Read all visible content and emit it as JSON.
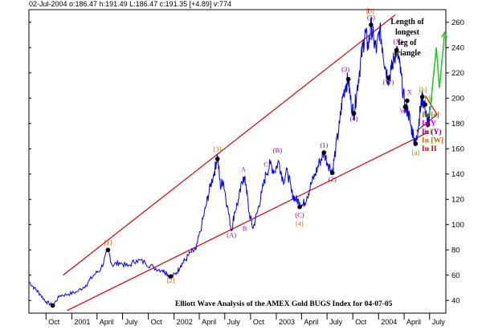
{
  "header": {
    "text": "02-Jul-2004  o:186.47 h:191.49 L:186.47 c:191.35 [+4.89] v:774"
  },
  "footer_title": "Elliott Wave Analysis of the AMEX Gold BUGS Index for 04-07-05",
  "annotation": "Length of longest leg of triangle",
  "colors": {
    "price": "#0000ee",
    "trend": "#dd0000",
    "projection": "#22cc22",
    "pivot": "#000000",
    "orange": "#e06000",
    "magenta": "#cc00cc",
    "purple": "#880088",
    "red": "#cc0000",
    "olive": "#888800",
    "dark": "#000080"
  },
  "right_legend": [
    {
      "text": "In [e]",
      "color": "#888800"
    },
    {
      "text": "In Y",
      "color": "#cc00cc"
    },
    {
      "text": "In (Y)",
      "color": "#880088"
    },
    {
      "text": "In [W]",
      "color": "#e06000"
    },
    {
      "text": "In II",
      "color": "#cc0000"
    }
  ],
  "chart_data": {
    "type": "line",
    "x_axis": {
      "range": [
        "2000-08-01",
        "2004-08-28"
      ],
      "tick_labels": [
        {
          "label": "Oct",
          "date": "2000-10-01"
        },
        {
          "label": "2001",
          "date": "2001-01-01"
        },
        {
          "label": "April",
          "date": "2001-04-01"
        },
        {
          "label": "July",
          "date": "2001-07-01"
        },
        {
          "label": "Oct",
          "date": "2001-10-01"
        },
        {
          "label": "2002",
          "date": "2002-01-01"
        },
        {
          "label": "April",
          "date": "2002-04-01"
        },
        {
          "label": "July",
          "date": "2002-07-01"
        },
        {
          "label": "Oct",
          "date": "2002-10-01"
        },
        {
          "label": "2003",
          "date": "2003-01-01"
        },
        {
          "label": "April",
          "date": "2003-04-01"
        },
        {
          "label": "July",
          "date": "2003-07-01"
        },
        {
          "label": "Oct",
          "date": "2003-10-01"
        },
        {
          "label": "2004",
          "date": "2004-01-01"
        },
        {
          "label": "April",
          "date": "2004-04-01"
        },
        {
          "label": "July",
          "date": "2004-07-01"
        }
      ]
    },
    "y_axis": {
      "range": [
        30,
        270
      ],
      "ticks": [
        40,
        60,
        80,
        100,
        120,
        140,
        160,
        180,
        200,
        220,
        240,
        260
      ]
    },
    "grid": false,
    "series": [
      {
        "points": [
          [
            "2000-08-01",
            55
          ],
          [
            "2000-08-20",
            50
          ],
          [
            "2000-09-10",
            45
          ],
          [
            "2000-10-01",
            39
          ],
          [
            "2000-10-25",
            36
          ],
          [
            "2000-11-20",
            44
          ],
          [
            "2000-12-20",
            45
          ],
          [
            "2001-01-20",
            47
          ],
          [
            "2001-02-20",
            52
          ],
          [
            "2001-03-20",
            60
          ],
          [
            "2001-04-15",
            65
          ],
          [
            "2001-05-10",
            80
          ],
          [
            "2001-05-25",
            68
          ],
          [
            "2001-06-20",
            70
          ],
          [
            "2001-07-20",
            67
          ],
          [
            "2001-08-20",
            72
          ],
          [
            "2001-09-20",
            70
          ],
          [
            "2001-10-20",
            66
          ],
          [
            "2001-11-20",
            64
          ],
          [
            "2001-12-05",
            62
          ],
          [
            "2001-12-20",
            58
          ],
          [
            "2002-01-10",
            62
          ],
          [
            "2002-01-25",
            68
          ],
          [
            "2002-02-10",
            72
          ],
          [
            "2002-03-01",
            78
          ],
          [
            "2002-03-20",
            80
          ],
          [
            "2002-04-10",
            100
          ],
          [
            "2002-04-25",
            115
          ],
          [
            "2002-05-10",
            130
          ],
          [
            "2002-05-25",
            142
          ],
          [
            "2002-06-05",
            155
          ],
          [
            "2002-06-15",
            130
          ],
          [
            "2002-06-25",
            135
          ],
          [
            "2002-07-10",
            115
          ],
          [
            "2002-07-25",
            95
          ],
          [
            "2002-08-05",
            110
          ],
          [
            "2002-08-20",
            120
          ],
          [
            "2002-09-05",
            138
          ],
          [
            "2002-09-15",
            132
          ],
          [
            "2002-09-25",
            110
          ],
          [
            "2002-10-10",
            97
          ],
          [
            "2002-10-25",
            110
          ],
          [
            "2002-11-10",
            125
          ],
          [
            "2002-11-25",
            140
          ],
          [
            "2002-12-10",
            148
          ],
          [
            "2002-12-25",
            142
          ],
          [
            "2003-01-10",
            150
          ],
          [
            "2003-01-25",
            135
          ],
          [
            "2003-02-10",
            142
          ],
          [
            "2003-02-25",
            125
          ],
          [
            "2003-03-10",
            120
          ],
          [
            "2003-03-25",
            118
          ],
          [
            "2003-04-05",
            115
          ],
          [
            "2003-04-20",
            122
          ],
          [
            "2003-05-05",
            132
          ],
          [
            "2003-05-20",
            140
          ],
          [
            "2003-06-05",
            150
          ],
          [
            "2003-06-20",
            157
          ],
          [
            "2003-07-05",
            148
          ],
          [
            "2003-07-20",
            142
          ],
          [
            "2003-08-01",
            160
          ],
          [
            "2003-08-15",
            180
          ],
          [
            "2003-08-25",
            200
          ],
          [
            "2003-09-05",
            210
          ],
          [
            "2003-09-15",
            215
          ],
          [
            "2003-09-25",
            195
          ],
          [
            "2003-10-05",
            188
          ],
          [
            "2003-10-15",
            205
          ],
          [
            "2003-10-25",
            222
          ],
          [
            "2003-11-05",
            240
          ],
          [
            "2003-11-15",
            252
          ],
          [
            "2003-11-25",
            240
          ],
          [
            "2003-12-05",
            258
          ],
          [
            "2003-12-15",
            245
          ],
          [
            "2003-12-25",
            238
          ],
          [
            "2004-01-05",
            255
          ],
          [
            "2004-01-15",
            240
          ],
          [
            "2004-01-25",
            225
          ],
          [
            "2004-02-05",
            215
          ],
          [
            "2004-02-15",
            222
          ],
          [
            "2004-02-25",
            232
          ],
          [
            "2004-03-05",
            238
          ],
          [
            "2004-03-15",
            228
          ],
          [
            "2004-03-25",
            210
          ],
          [
            "2004-04-05",
            192
          ],
          [
            "2004-04-15",
            190
          ],
          [
            "2004-04-25",
            178
          ],
          [
            "2004-05-05",
            170
          ],
          [
            "2004-05-12",
            163
          ],
          [
            "2004-05-20",
            175
          ],
          [
            "2004-05-28",
            190
          ],
          [
            "2004-06-05",
            201
          ],
          [
            "2004-06-12",
            195
          ],
          [
            "2004-06-20",
            185
          ],
          [
            "2004-06-25",
            179
          ],
          [
            "2004-06-30",
            186
          ],
          [
            "2004-07-02",
            191
          ]
        ]
      }
    ],
    "trendlines": [
      {
        "from": [
          "2000-12-01",
          60
        ],
        "to": [
          "2004-03-01",
          266
        ]
      },
      {
        "from": [
          "2000-12-15",
          32
        ],
        "to": [
          "2004-06-25",
          173
        ]
      },
      {
        "from": [
          "2004-05-15",
          174
        ],
        "to": [
          "2004-07-28",
          187
        ]
      },
      {
        "from": [
          "2004-06-15",
          202
        ],
        "to": [
          "2004-07-28",
          187
        ]
      }
    ],
    "projection": [
      [
        "2004-07-01",
        186
      ],
      [
        "2004-07-25",
        240
      ],
      [
        "2004-08-05",
        208
      ],
      [
        "2004-08-24",
        252
      ]
    ],
    "pivots": [
      [
        "2000-10-25",
        36
      ],
      [
        "2001-05-10",
        80
      ],
      [
        "2001-12-20",
        59
      ],
      [
        "2002-06-05",
        152
      ],
      [
        "2003-03-25",
        114
      ],
      [
        "2003-06-20",
        157
      ],
      [
        "2003-07-20",
        141
      ],
      [
        "2003-09-15",
        215
      ],
      [
        "2003-10-05",
        188
      ],
      [
        "2003-12-05",
        258
      ],
      [
        "2004-02-05",
        216
      ],
      [
        "2004-03-05",
        238
      ],
      [
        "2004-04-05",
        193
      ],
      [
        "2004-04-12",
        198
      ],
      [
        "2004-05-12",
        164
      ],
      [
        "2004-06-05",
        201
      ],
      [
        "2004-06-25",
        179
      ],
      [
        "2004-06-15",
        195
      ]
    ],
    "wave_labels": [
      {
        "text": "[1]",
        "at": [
          "2001-05-10",
          84
        ],
        "color": "#e06000"
      },
      {
        "text": "[2]",
        "at": [
          "2001-12-20",
          54
        ],
        "color": "#e06000"
      },
      {
        "text": "[3]",
        "at": [
          "2002-06-05",
          158
        ],
        "color": "#e06000"
      },
      {
        "text": "A",
        "at": [
          "2002-09-05",
          142
        ],
        "color": "#cc00cc"
      },
      {
        "text": "B",
        "at": [
          "2002-09-10",
          95
        ],
        "color": "#cc00cc"
      },
      {
        "text": "(A)",
        "at": [
          "2002-07-25",
          90
        ],
        "color": "#880088"
      },
      {
        "text": "C",
        "at": [
          "2002-11-25",
          146
        ],
        "color": "#cc00cc"
      },
      {
        "text": "(B)",
        "at": [
          "2003-01-05",
          157
        ],
        "color": "#880088"
      },
      {
        "text": "(C)",
        "at": [
          "2003-03-25",
          106
        ],
        "color": "#880088"
      },
      {
        "text": "[4]",
        "at": [
          "2003-03-25",
          99
        ],
        "color": "#e06000"
      },
      {
        "text": "(1)",
        "at": [
          "2003-06-20",
          161
        ],
        "color": "#880088"
      },
      {
        "text": "(2)",
        "at": [
          "2003-07-20",
          134
        ],
        "color": "#880088"
      },
      {
        "text": "(3)",
        "at": [
          "2003-09-05",
          221
        ],
        "color": "#880088"
      },
      {
        "text": "(4)",
        "at": [
          "2003-10-05",
          182
        ],
        "color": "#880088"
      },
      {
        "text": "I",
        "at": [
          "2003-11-25",
          267
        ],
        "color": "#cc0000"
      },
      {
        "text": "[5]",
        "at": [
          "2003-12-02",
          267
        ],
        "color": "#e06000"
      },
      {
        "text": "(5)",
        "at": [
          "2003-12-05",
          262
        ],
        "color": "#880088"
      },
      {
        "text": "(W)",
        "at": [
          "2004-02-05",
          211
        ],
        "color": "#880088"
      },
      {
        "text": "(X)",
        "at": [
          "2004-03-10",
          243
        ],
        "color": "#880088"
      },
      {
        "text": "W",
        "at": [
          "2004-03-28",
          188
        ],
        "color": "#cc00cc"
      },
      {
        "text": "X",
        "at": [
          "2004-04-20",
          203
        ],
        "color": "#cc00cc"
      },
      {
        "text": "[a]",
        "at": [
          "2004-05-12",
          155
        ],
        "color": "#888800"
      },
      {
        "text": "[b]",
        "at": [
          "2004-06-08",
          205
        ],
        "color": "#888800"
      },
      {
        "text": "[c]",
        "at": [
          "2004-06-25",
          172
        ],
        "color": "#888800"
      },
      {
        "text": "[d]",
        "at": [
          "2004-06-28",
          198
        ],
        "color": "#888800"
      }
    ]
  }
}
